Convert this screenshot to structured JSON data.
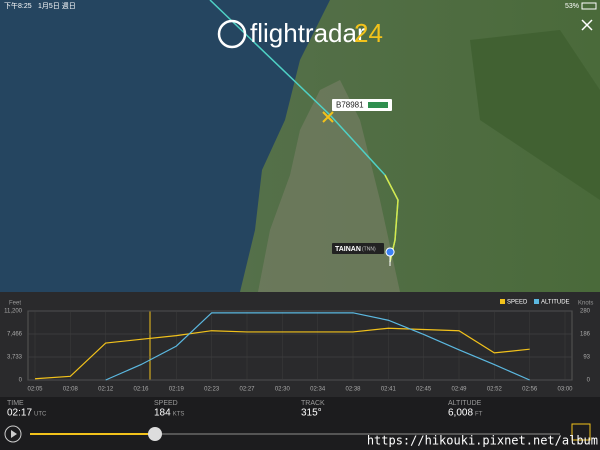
{
  "status_bar": {
    "time": "下午8:25",
    "date": "1月5日 週日",
    "battery": "53%"
  },
  "map": {
    "logo": "flightradar",
    "logo_number": 24,
    "aircraft": "B78981",
    "airport": "TAINAN",
    "airport_code": "(TNN)"
  },
  "chart": {
    "type": "line",
    "y_label": "Feet",
    "y2_label": "Knots",
    "categories": [
      "02:05",
      "02:08",
      "02:12",
      "02:16",
      "02:19",
      "02:23",
      "02:27",
      "02:30",
      "02:34",
      "02:38",
      "02:41",
      "02:45",
      "02:49",
      "02:52",
      "02:56",
      "03:00"
    ],
    "series": [
      {
        "name": "SPEED",
        "color": "#f2c21b",
        "axis": "y2",
        "values": [
          5,
          15,
          150,
          165,
          180,
          200,
          195,
          195,
          195,
          195,
          210,
          205,
          200,
          110,
          125,
          null
        ]
      },
      {
        "name": "ALTITUDE",
        "color": "#5bb8e0",
        "values": [
          null,
          null,
          0,
          2500,
          5500,
          10900,
          10900,
          10900,
          10900,
          10900,
          9700,
          7400,
          4900,
          2500,
          0,
          null
        ]
      }
    ],
    "ylim": [
      0,
      11200
    ],
    "yticks": [
      0,
      {
        "value": 3733,
        "label": "3,733"
      },
      {
        "value": 7466,
        "label": "7,466"
      },
      {
        "value": 11200,
        "label": "11,200"
      }
    ],
    "y2lim": [
      0,
      280
    ],
    "y2ticks": [
      0,
      93,
      186,
      280
    ]
  },
  "info": [
    {
      "label": "TIME",
      "value": "02:17",
      "unit": "UTC"
    },
    {
      "label": "SPEED",
      "value": 184,
      "unit": "KTS"
    },
    {
      "label": "TRACK",
      "value": "315°"
    },
    {
      "label": "ALTITUDE",
      "value": "6,008",
      "unit": "FT"
    }
  ],
  "watermark": "https://hikouki.pixnet.net/album"
}
